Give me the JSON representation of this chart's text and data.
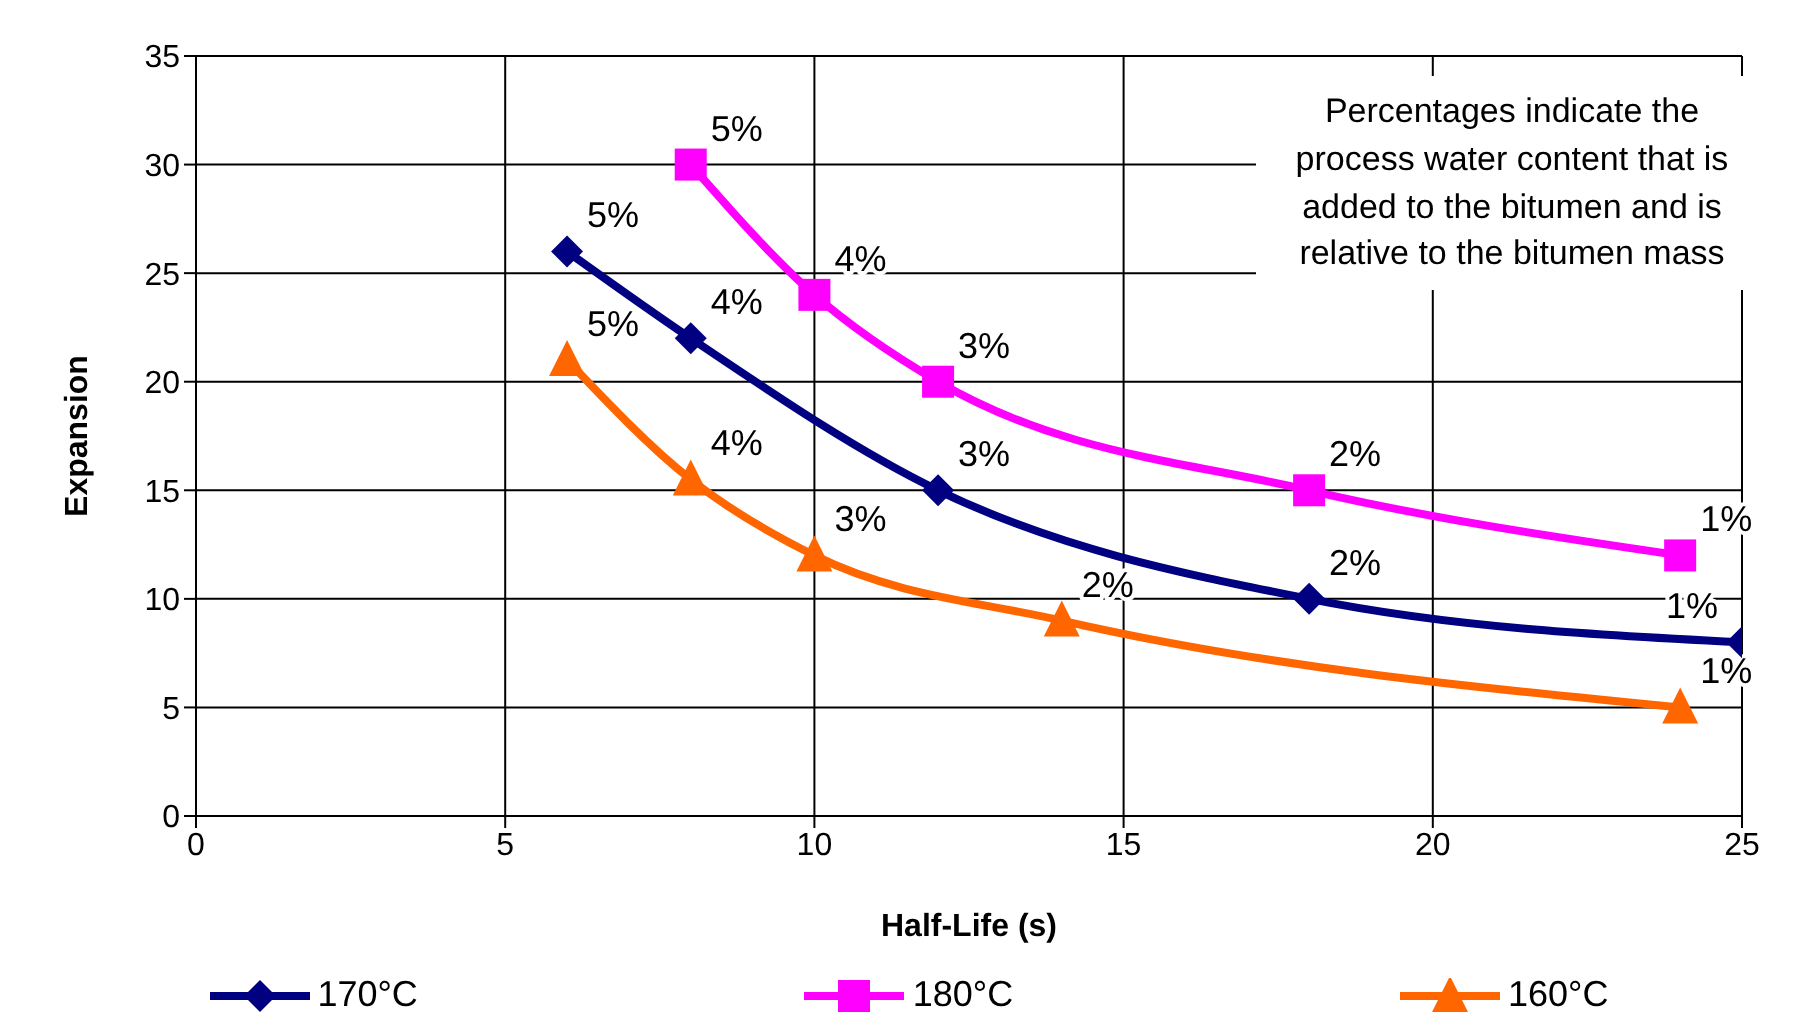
{
  "chart_data": {
    "type": "line",
    "xlabel": "Half-Life (s)",
    "ylabel": "Expansion",
    "xlim": [
      0,
      25
    ],
    "xticks": [
      0,
      5,
      10,
      15,
      20,
      25
    ],
    "ylim": [
      0,
      35
    ],
    "yticks": [
      0,
      5,
      10,
      15,
      20,
      25,
      30,
      35
    ],
    "grid": true,
    "legend": "bottom",
    "annotations": [
      "Percentages indicate the process water content that is added to the bitumen and is relative to the bitumen mass",
      {
        "text": "5%",
        "x": 6,
        "y": 26
      },
      {
        "text": "4%",
        "x": 8,
        "y": 22
      },
      {
        "text": "3%",
        "x": 12,
        "y": 15
      },
      {
        "text": "2%",
        "x": 18,
        "y": 10
      },
      {
        "text": "1%",
        "x": 25,
        "y": 8
      },
      {
        "text": "5%",
        "x": 8,
        "y": 30
      },
      {
        "text": "4%",
        "x": 10,
        "y": 24
      },
      {
        "text": "3%",
        "x": 12,
        "y": 20
      },
      {
        "text": "2%",
        "x": 18,
        "y": 15
      },
      {
        "text": "1%",
        "x": 24,
        "y": 12
      },
      {
        "text": "5%",
        "x": 6,
        "y": 21
      },
      {
        "text": "4%",
        "x": 8,
        "y": 15.5
      },
      {
        "text": "3%",
        "x": 10,
        "y": 12
      },
      {
        "text": "2%",
        "x": 14,
        "y": 9
      },
      {
        "text": "1%",
        "x": 24,
        "y": 5
      }
    ],
    "series": [
      {
        "name": "170°C",
        "color": "#000080",
        "marker": "diamond",
        "x": [
          6,
          8,
          12,
          18,
          25
        ],
        "values": [
          26,
          22,
          15,
          10,
          8
        ]
      },
      {
        "name": "180°C",
        "color": "#ff00ff",
        "marker": "square",
        "x": [
          8,
          10,
          12,
          18,
          24
        ],
        "values": [
          30,
          24,
          20,
          15,
          12
        ]
      },
      {
        "name": "160°C",
        "color": "#ff6600",
        "marker": "triangle",
        "x": [
          6,
          8,
          10,
          14,
          24
        ],
        "values": [
          21,
          15.5,
          12,
          9,
          5
        ]
      }
    ]
  }
}
